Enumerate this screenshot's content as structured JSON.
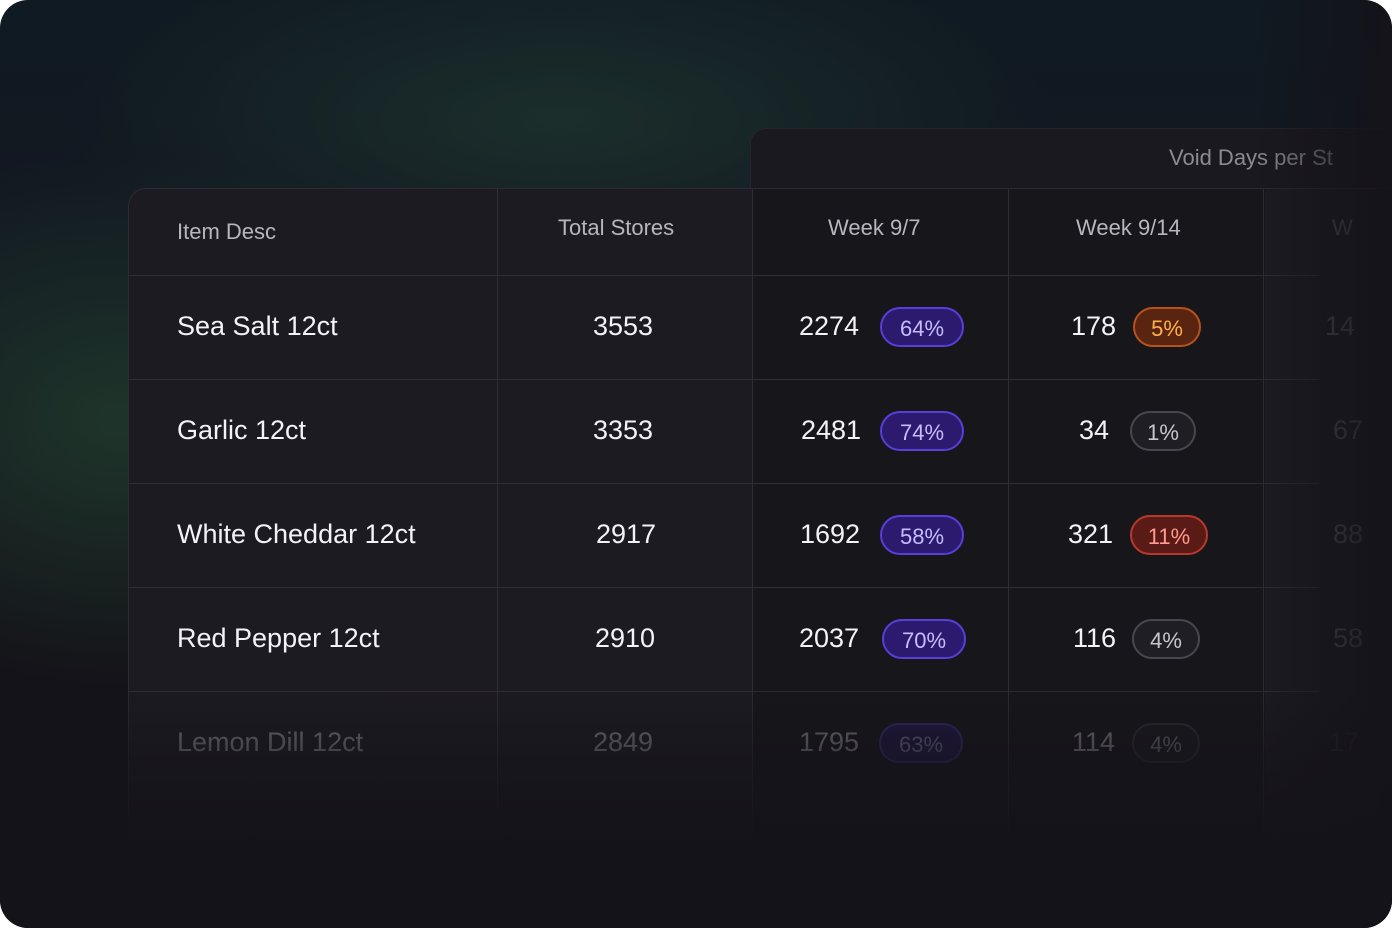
{
  "panel": {
    "title": "Void Days per St"
  },
  "table": {
    "headers": [
      "Item Desc",
      "Total Stores",
      "Week 9/7",
      "Week 9/14",
      "W"
    ],
    "rows": [
      {
        "item": "Sea Salt 12ct",
        "stores": "3553",
        "w1": "2274",
        "w1_pct": "64%",
        "w2": "178",
        "w2_pct": "5%",
        "w3": "14"
      },
      {
        "item": "Garlic 12ct",
        "stores": "3353",
        "w1": "2481",
        "w1_pct": "74%",
        "w2": "34",
        "w2_pct": "1%",
        "w3": "67"
      },
      {
        "item": "White Cheddar 12ct",
        "stores": "2917",
        "w1": "1692",
        "w1_pct": "58%",
        "w2": "321",
        "w2_pct": "11%",
        "w3": "88"
      },
      {
        "item": "Red Pepper 12ct",
        "stores": "2910",
        "w1": "2037",
        "w1_pct": "70%",
        "w2": "116",
        "w2_pct": "4%",
        "w3": "58"
      },
      {
        "item": "Lemon Dill 12ct",
        "stores": "2849",
        "w1": "1795",
        "w1_pct": "63%",
        "w2": "114",
        "w2_pct": "4%",
        "w3": "17"
      }
    ]
  },
  "colors": {
    "badge_purple": "#5a3fd6",
    "badge_orange": "#b6521c",
    "badge_red": "#b63a2c",
    "badge_gray": "#48474f"
  }
}
